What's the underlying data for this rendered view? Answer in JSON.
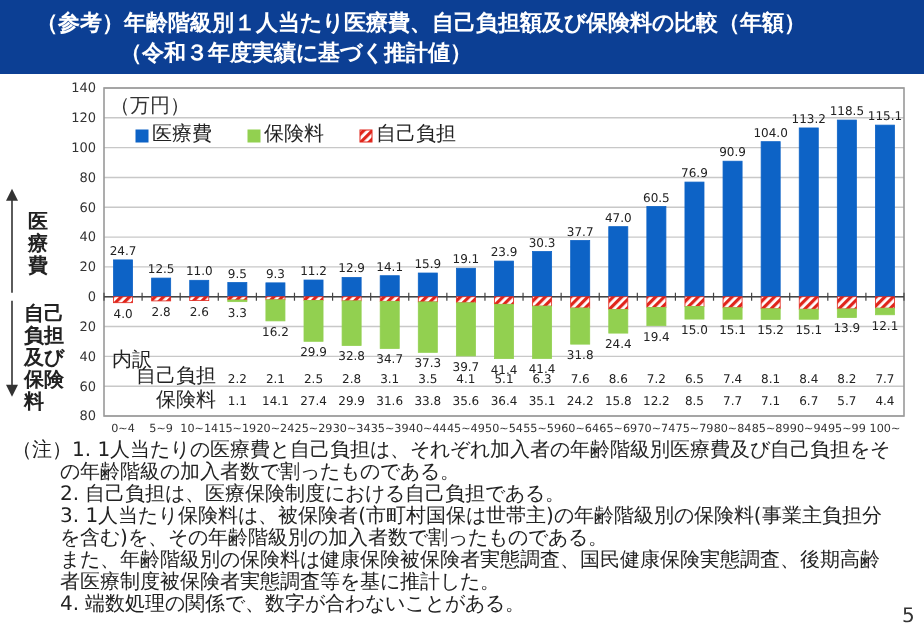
{
  "chart_data": {
    "type": "bar",
    "title": "（参考）年齢階級別１人当たり医療費、自己負担額及び保険料の比較（年額）",
    "subtitle": "（令和３年度実績に基づく推計値）",
    "ylabel": "（万円）",
    "categories": [
      "0~4",
      "5~9",
      "10~14",
      "15~19",
      "20~24",
      "25~29",
      "30~34",
      "35~39",
      "40~44",
      "45~49",
      "50~54",
      "55~59",
      "60~64",
      "65~69",
      "70~74",
      "75~79",
      "80~84",
      "85~89",
      "90~94",
      "95~99",
      "100~"
    ],
    "series": [
      {
        "name": "医療費",
        "color": "#0d63c6",
        "values": [
          24.7,
          12.5,
          11.0,
          9.5,
          9.3,
          11.2,
          12.9,
          14.1,
          15.9,
          19.1,
          23.9,
          30.3,
          37.7,
          47.0,
          60.5,
          76.9,
          90.9,
          104.0,
          113.2,
          118.5,
          115.1
        ],
        "value_labels": [
          "24.7",
          "12.5",
          "11.0",
          "9.5",
          "9.3",
          "11.2",
          "12.9",
          "14.1",
          "15.9",
          "19.1",
          "23.9",
          "30.3",
          "37.7",
          "47.0",
          "60.5",
          "76.9",
          "90.9",
          "104.0",
          "113.2",
          "118.5",
          "115.1"
        ]
      },
      {
        "name": "自己負担",
        "color": "#e0251b",
        "values": [
          -4.0,
          -2.8,
          -2.6,
          -2.2,
          -2.1,
          -2.5,
          -2.8,
          -3.1,
          -3.5,
          -4.1,
          -5.1,
          -6.3,
          -7.6,
          -8.6,
          -7.2,
          -6.5,
          -7.4,
          -8.1,
          -8.4,
          -8.2,
          -7.7
        ]
      },
      {
        "name": "保険料",
        "color": "#92d050",
        "values": [
          null,
          null,
          null,
          -1.1,
          -14.1,
          -27.4,
          -29.9,
          -31.6,
          -33.8,
          -35.6,
          -36.4,
          -35.1,
          -24.2,
          -15.8,
          -12.2,
          -8.5,
          -7.7,
          -7.1,
          -6.7,
          -5.7,
          -4.4
        ]
      }
    ],
    "stacked": true,
    "ylim": [
      -80,
      140
    ],
    "yticks": [
      {
        "value": -80,
        "label": "80"
      },
      {
        "value": -60,
        "label": "60"
      },
      {
        "value": -40,
        "label": "40"
      },
      {
        "value": -20,
        "label": "20"
      },
      0,
      20,
      40,
      60,
      80,
      100,
      120,
      140
    ],
    "grid": "y",
    "legend": "top left",
    "annotations": [
      "医療費",
      "自己負担及び保険料",
      "内訳",
      "自己負担",
      "保険料",
      "（注）1. 1人当たりの医療費と自己負担は、それぞれ加入者の年齢階級別医療費及び自己負担をその年齢階級の加入者数で割ったものである。",
      "2. 自己負担は、医療保険制度における自己負担である。",
      "3. 1人当たり保険料は、被保険者(市町村国保は世帯主)の年齢階級別の保険料(事業主負担分を含む)を、その年齢階級別の加入者数で割ったものである。",
      "また、年齢階級別の保険料は健康保険被保険者実態調査、国民健康保険実態調査、後期高齢者医療制度被保険者実態調査等を基に推計した。",
      "4. 端数処理の関係で、数字が合わないことがある。",
      "5",
      "4.0",
      "2.8",
      "2.6",
      "3.3",
      "16.2",
      "29.9",
      "32.8",
      "34.7",
      "37.3",
      "39.7",
      "41.4",
      "41.4",
      "31.8",
      "24.4",
      "19.4",
      "15.0",
      "15.1",
      "15.2",
      "15.1",
      "13.9",
      "12.1",
      "2.2",
      "2.1",
      "2.5",
      "2.8",
      "3.1",
      "3.5",
      "4.1",
      "5.1",
      "6.3",
      "7.6",
      "8.6",
      "7.2",
      "6.5",
      "7.4",
      "8.1",
      "8.4",
      "8.2",
      "7.7",
      "1.1",
      "14.1",
      "27.4",
      "29.9",
      "31.6",
      "33.8",
      "35.6",
      "36.4",
      "35.1",
      "24.2",
      "15.8",
      "12.2",
      "8.5",
      "7.7",
      "7.1",
      "6.7",
      "5.7",
      "4.4"
    ]
  }
}
